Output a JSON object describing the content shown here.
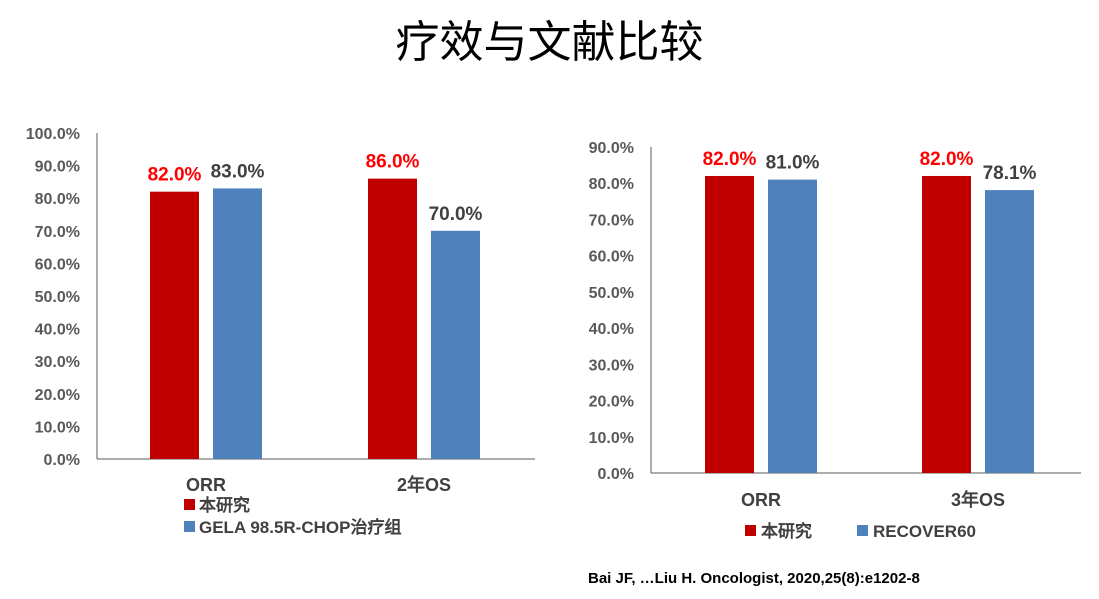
{
  "page": {
    "title": "疗效与文献比较",
    "citation": "Bai JF, …Liu H. Oncologist, 2020,25(8):e1202-8"
  },
  "chart_data": [
    {
      "type": "bar",
      "categories": [
        "ORR",
        "2年OS"
      ],
      "series": [
        {
          "name": "本研究",
          "values": [
            82.0,
            86.0
          ],
          "color": "#C00000",
          "label_color": "#FF0000"
        },
        {
          "name": "GELA 98.5R-CHOP治疗组",
          "values": [
            83.0,
            70.0
          ],
          "color": "#4F81BD",
          "label_color": "#404040"
        }
      ],
      "ylim": [
        0,
        100
      ],
      "yticks": [
        "0.0%",
        "10.0%",
        "20.0%",
        "30.0%",
        "40.0%",
        "50.0%",
        "60.0%",
        "70.0%",
        "80.0%",
        "90.0%",
        "100.0%"
      ],
      "data_labels": [
        [
          "82.0%",
          "86.0%"
        ],
        [
          "83.0%",
          "70.0%"
        ]
      ],
      "legend": "bottom-left",
      "grid": false
    },
    {
      "type": "bar",
      "categories": [
        "ORR",
        "3年OS"
      ],
      "series": [
        {
          "name": "本研究",
          "values": [
            82.0,
            82.0
          ],
          "color": "#C00000",
          "label_color": "#FF0000"
        },
        {
          "name": "RECOVER60",
          "values": [
            81.0,
            78.1
          ],
          "color": "#4F81BD",
          "label_color": "#404040"
        }
      ],
      "ylim": [
        0,
        90
      ],
      "yticks": [
        "0.0%",
        "10.0%",
        "20.0%",
        "30.0%",
        "40.0%",
        "50.0%",
        "60.0%",
        "70.0%",
        "80.0%",
        "90.0%"
      ],
      "data_labels": [
        [
          "82.0%",
          "82.0%"
        ],
        [
          "81.0%",
          "78.1%"
        ]
      ],
      "legend": "bottom",
      "grid": false
    }
  ]
}
